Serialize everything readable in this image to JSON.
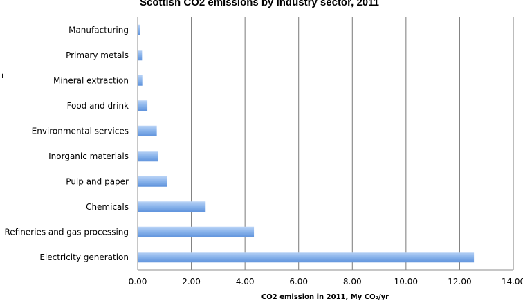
{
  "chart_data": {
    "type": "bar",
    "orientation": "horizontal",
    "title": "Scottish CO2 emissions by industry sector, 2011",
    "xlabel": "CO2 emission in 2011, My CO₂/yr",
    "ylabel": "",
    "xlim": [
      0,
      14
    ],
    "x_ticks": [
      "0.00",
      "2.00",
      "4.00",
      "6.00",
      "8.00",
      "10.00",
      "12.00",
      "14.00"
    ],
    "grid": "vertical",
    "legend": "none",
    "bar_color": "#7fabe6",
    "stray_text": "i",
    "categories": [
      "Manufacturing",
      "Primary metals",
      "Mineral extraction",
      "Food and drink",
      "Environmental services",
      "Inorganic materials",
      "Pulp and paper",
      "Chemicals",
      "Refineries and gas processing",
      "Electricity generation"
    ],
    "values": [
      0.08,
      0.15,
      0.16,
      0.35,
      0.7,
      0.75,
      1.08,
      2.52,
      4.32,
      12.52
    ]
  }
}
